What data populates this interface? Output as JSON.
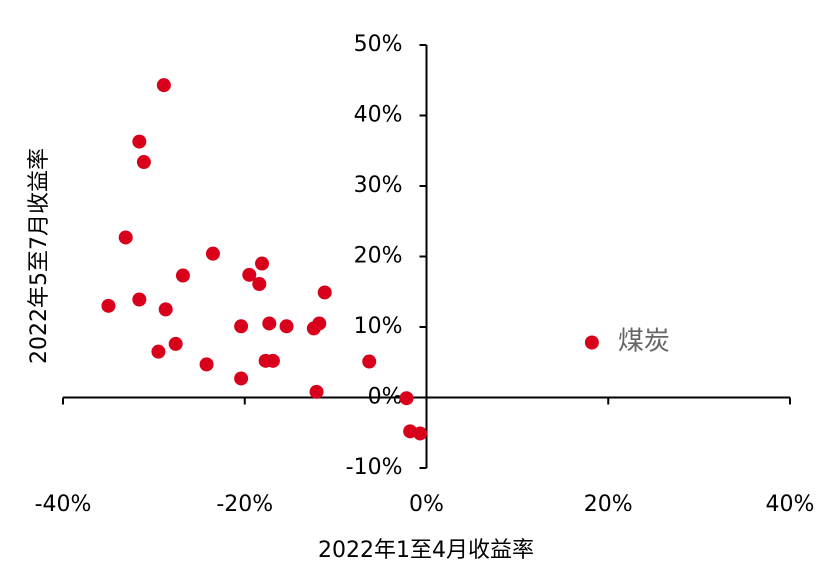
{
  "chart_data": {
    "type": "scatter",
    "x_label": "2022年1至4月收益率",
    "y_label": "2022年5至7月收益率",
    "color": "#d9001b",
    "x": [
      -28.9,
      -31.6,
      -31.1,
      -33.1,
      -23.5,
      -18.1,
      -26.8,
      -19.5,
      -18.4,
      -11.2,
      -35.0,
      -31.6,
      -28.7,
      -20.4,
      -17.3,
      -15.4,
      -11.8,
      -12.4,
      -27.6,
      -29.5,
      -17.7,
      -16.9,
      -24.2,
      -6.3,
      -20.4,
      -12.1,
      -2.2,
      -1.8,
      -0.7,
      18.2
    ],
    "values": [
      44.3,
      36.3,
      33.4,
      22.7,
      20.4,
      19.0,
      17.3,
      17.4,
      16.1,
      14.9,
      13.0,
      13.9,
      12.5,
      10.1,
      10.5,
      10.1,
      10.5,
      9.8,
      7.6,
      6.5,
      5.2,
      5.2,
      4.7,
      5.1,
      2.7,
      0.8,
      -0.1,
      -4.8,
      -5.1,
      7.8
    ],
    "point_labels": [
      null,
      null,
      null,
      null,
      null,
      null,
      null,
      null,
      null,
      null,
      null,
      null,
      null,
      null,
      null,
      null,
      null,
      null,
      null,
      null,
      null,
      null,
      null,
      null,
      null,
      null,
      null,
      null,
      null,
      "煤炭"
    ],
    "xlim": [
      -40,
      40
    ],
    "ylim": [
      -10,
      50
    ],
    "xticks": [
      {
        "value": -40,
        "label": "-40%"
      },
      {
        "value": -20,
        "label": "-20%"
      },
      {
        "value": 0,
        "label": "0%"
      },
      {
        "value": 20,
        "label": "20%"
      },
      {
        "value": 40,
        "label": "40%"
      }
    ],
    "yticks": [
      {
        "value": -10,
        "label": "-10%"
      },
      {
        "value": 0,
        "label": "0%"
      },
      {
        "value": 10,
        "label": "10%"
      },
      {
        "value": 20,
        "label": "20%"
      },
      {
        "value": 30,
        "label": "30%"
      },
      {
        "value": 40,
        "label": "40%"
      },
      {
        "value": 50,
        "label": "50%"
      }
    ]
  }
}
